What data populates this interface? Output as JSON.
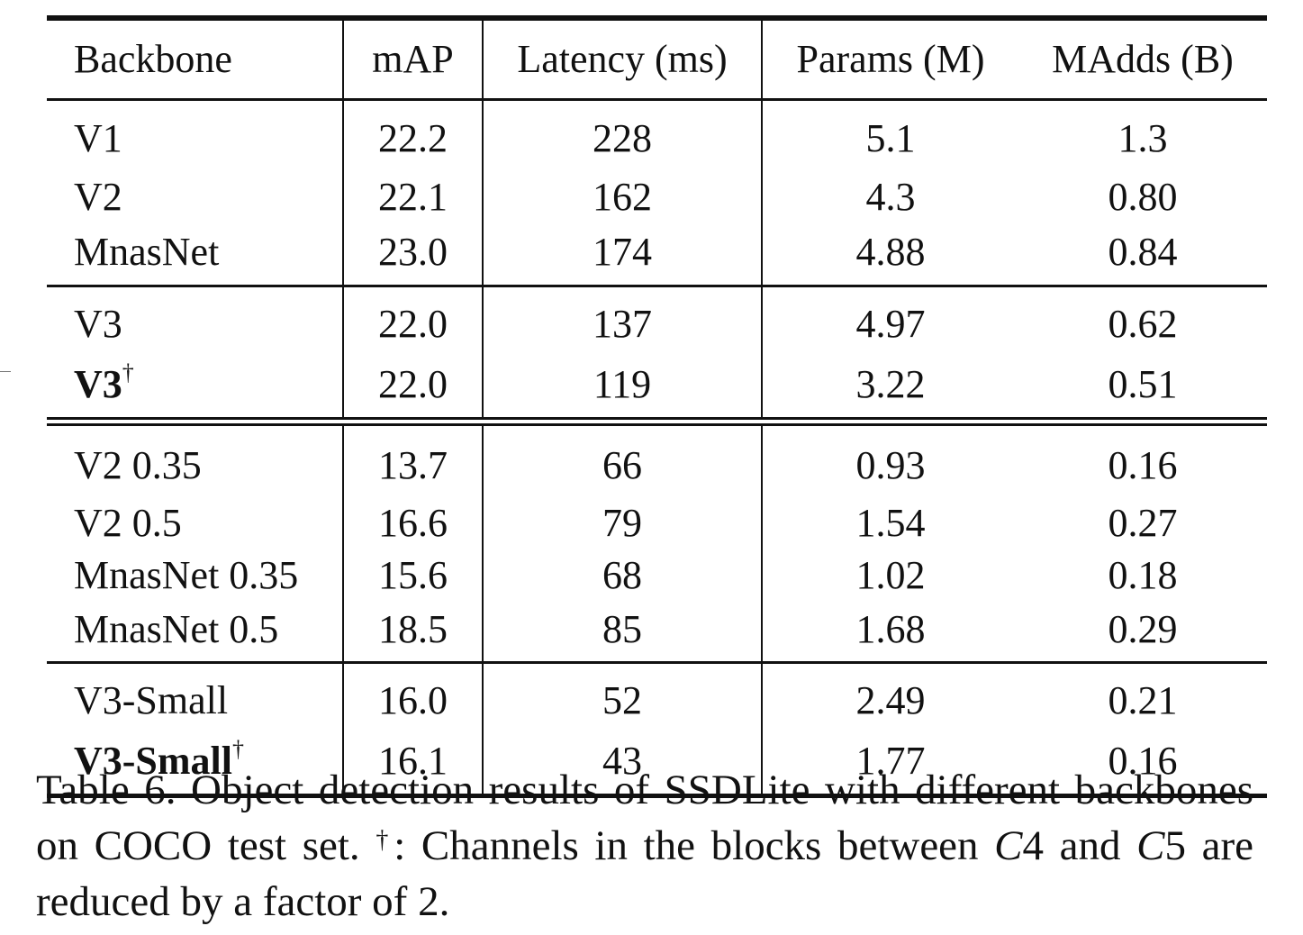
{
  "table": {
    "headers": [
      "Backbone",
      "mAP",
      "Latency (ms)",
      "Params (M)",
      "MAdds (B)"
    ],
    "groups": [
      [
        {
          "backbone": "V1",
          "dagger": "",
          "bold": false,
          "map": "22.2",
          "latency": "228",
          "params": "5.1",
          "madds": "1.3"
        },
        {
          "backbone": "V2",
          "dagger": "",
          "bold": false,
          "map": "22.1",
          "latency": "162",
          "params": "4.3",
          "madds": "0.80"
        },
        {
          "backbone": "MnasNet",
          "dagger": "",
          "bold": false,
          "map": "23.0",
          "latency": "174",
          "params": "4.88",
          "madds": "0.84"
        }
      ],
      [
        {
          "backbone": "V3",
          "dagger": "",
          "bold": false,
          "map": "22.0",
          "latency": "137",
          "params": "4.97",
          "madds": "0.62"
        },
        {
          "backbone": "V3",
          "dagger": "†",
          "bold": true,
          "map": "22.0",
          "latency": "119",
          "params": "3.22",
          "madds": "0.51"
        }
      ],
      [
        {
          "backbone": "V2 0.35",
          "dagger": "",
          "bold": false,
          "map": "13.7",
          "latency": "66",
          "params": "0.93",
          "madds": "0.16"
        },
        {
          "backbone": "V2 0.5",
          "dagger": "",
          "bold": false,
          "map": "16.6",
          "latency": "79",
          "params": "1.54",
          "madds": "0.27"
        },
        {
          "backbone": "MnasNet 0.35",
          "dagger": "",
          "bold": false,
          "map": "15.6",
          "latency": "68",
          "params": "1.02",
          "madds": "0.18"
        },
        {
          "backbone": "MnasNet 0.5",
          "dagger": "",
          "bold": false,
          "map": "18.5",
          "latency": "85",
          "params": "1.68",
          "madds": "0.29"
        }
      ],
      [
        {
          "backbone": "V3-Small",
          "dagger": "",
          "bold": false,
          "map": "16.0",
          "latency": "52",
          "params": "2.49",
          "madds": "0.21"
        },
        {
          "backbone": "V3-Small",
          "dagger": "†",
          "bold": true,
          "map": "16.1",
          "latency": "43",
          "params": "1.77",
          "madds": "0.16"
        }
      ]
    ]
  },
  "caption": {
    "part1": "Table 6. Object detection results of SSDLite with different backbones on COCO test set. ",
    "dagger": "†",
    "part2": ": Channels in the blocks between ",
    "c4_letter": "C",
    "c4_num": "4",
    "part3": " and ",
    "c5_letter": "C",
    "c5_num": "5",
    "part4": " are reduced by a factor of 2."
  }
}
